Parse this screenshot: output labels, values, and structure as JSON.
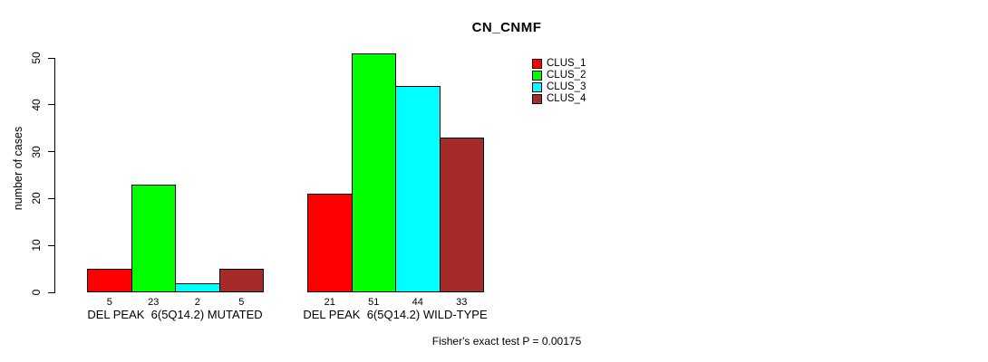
{
  "title": "CN_CNMF",
  "y_axis": {
    "label": "number of cases",
    "ticks": [
      0,
      10,
      20,
      30,
      40,
      50
    ]
  },
  "legend": {
    "items": [
      {
        "label": "CLUS_1",
        "color": "#FF0000"
      },
      {
        "label": "CLUS_2",
        "color": "#00FF00"
      },
      {
        "label": "CLUS_3",
        "color": "#00FFFF"
      },
      {
        "label": "CLUS_4",
        "color": "#A52A2A"
      }
    ]
  },
  "footer": {
    "text": "Fisher's exact test P = 0.00175"
  },
  "chart_data": {
    "type": "bar",
    "title": "CN_CNMF",
    "xlabel": "",
    "ylabel": "number of cases",
    "ylim": [
      0,
      51
    ],
    "grid": false,
    "legend_position": "top-right",
    "categories": [
      "DEL PEAK  6(5Q14.2) MUTATED",
      "DEL PEAK  6(5Q14.2) WILD-TYPE"
    ],
    "series": [
      {
        "name": "CLUS_1",
        "color": "#FF0000",
        "values": [
          5,
          21
        ]
      },
      {
        "name": "CLUS_2",
        "color": "#00FF00",
        "values": [
          23,
          51
        ]
      },
      {
        "name": "CLUS_3",
        "color": "#00FFFF",
        "values": [
          2,
          44
        ]
      },
      {
        "name": "CLUS_4",
        "color": "#A52A2A",
        "values": [
          5,
          33
        ]
      }
    ],
    "bar_value_labels": [
      [
        5,
        23,
        2,
        5
      ],
      [
        21,
        51,
        44,
        33
      ]
    ]
  }
}
